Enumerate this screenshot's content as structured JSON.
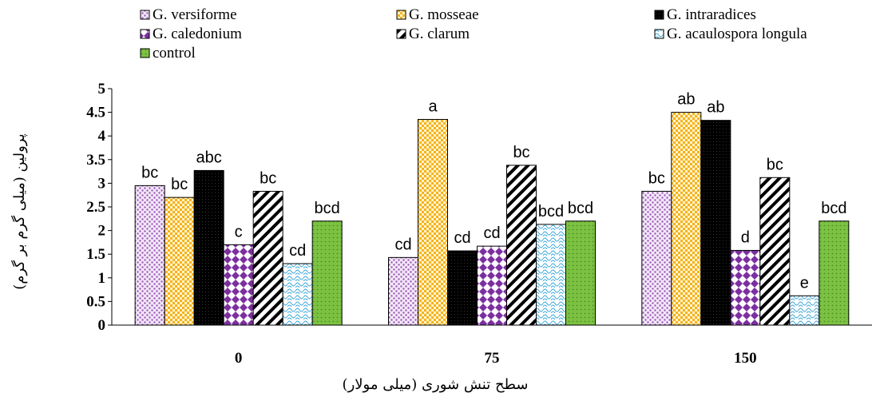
{
  "chart_data": {
    "type": "bar",
    "categories": [
      "0",
      "75",
      "150"
    ],
    "xlabel": "سطح تنش شوری (میلی مولار)",
    "ylabel": "پرولین (میلی گرم بر گرم)",
    "ylim": [
      0,
      5
    ],
    "yticks": [
      "0",
      "0.5",
      "1",
      "1.5",
      "2",
      "2.5",
      "3",
      "3.5",
      "4",
      "4.5",
      "5"
    ],
    "grid": false,
    "legend_position": "top",
    "series": [
      {
        "name": "G. versiforme",
        "pattern": "dots-purple",
        "color": "#9b59b6",
        "values": [
          2.95,
          1.43,
          2.83
        ],
        "labels": [
          "bc",
          "cd",
          "bc"
        ]
      },
      {
        "name": "G. mosseae",
        "pattern": "checker-orange",
        "color": "#f5b31e",
        "values": [
          2.7,
          4.35,
          4.5
        ],
        "labels": [
          "bc",
          "a",
          "ab"
        ]
      },
      {
        "name": "G. intraradices",
        "pattern": "solid-black",
        "color": "#000000",
        "values": [
          3.27,
          1.57,
          4.33
        ],
        "labels": [
          "abc",
          "cd",
          "ab"
        ]
      },
      {
        "name": "G. caledonium",
        "pattern": "diamond-purple",
        "color": "#7b2fa0",
        "values": [
          1.7,
          1.67,
          1.58
        ],
        "labels": [
          "c",
          "cd",
          "d"
        ]
      },
      {
        "name": "G. clarum",
        "pattern": "stripes-black",
        "color": "#000000",
        "values": [
          2.83,
          3.38,
          3.12
        ],
        "labels": [
          "bc",
          "bc",
          "bc"
        ]
      },
      {
        "name": "G. acaulospora longula",
        "pattern": "waves-blue",
        "color": "#3fa8d8",
        "values": [
          1.3,
          2.13,
          0.62
        ],
        "labels": [
          "cd",
          "bcd",
          "e"
        ]
      },
      {
        "name": "control",
        "pattern": "dots-green",
        "color": "#7cc242",
        "values": [
          2.2,
          2.2,
          2.2
        ],
        "labels": [
          "bcd",
          "bcd",
          "bcd"
        ]
      }
    ]
  }
}
